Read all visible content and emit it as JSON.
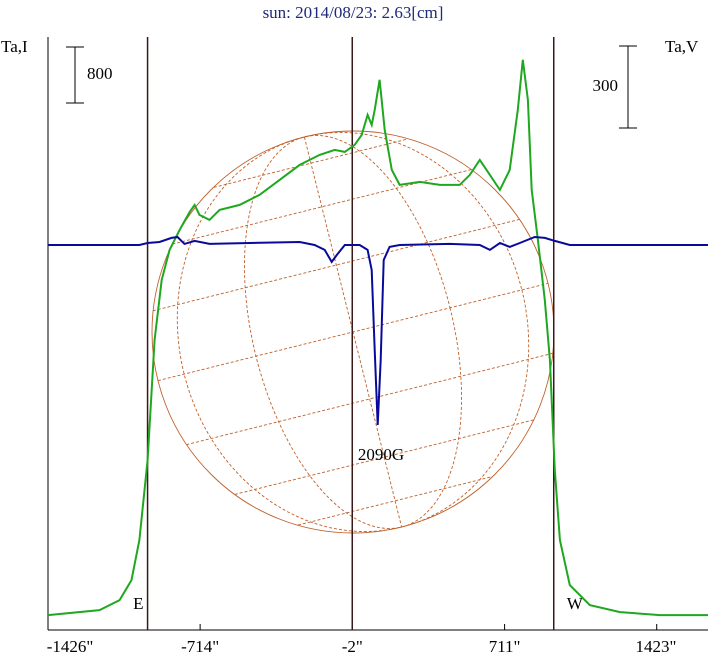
{
  "chart_data": {
    "type": "line",
    "title": "sun: 2014/08/23: 2.63[cm]",
    "xlim": [
      -1426,
      1663
    ],
    "ylim": [
      -170,
      8300
    ],
    "y2lim": [
      -1409,
      761
    ],
    "xticks": [
      {
        "value": -1426,
        "label": "-1426\""
      },
      {
        "value": -714,
        "label": "-714\""
      },
      {
        "value": -2,
        "label": "-2\""
      },
      {
        "value": 711,
        "label": "711\""
      },
      {
        "value": 1423,
        "label": "1423\""
      }
    ],
    "limb_lines": [
      -960,
      -2,
      941
    ],
    "limb_labels": [
      "E",
      "W"
    ],
    "scale_bars": [
      {
        "value": 800,
        "axis": "y"
      },
      {
        "value": 300,
        "axis": "y2"
      }
    ],
    "annotation": "2090G",
    "series": [
      {
        "name": "Ta,I",
        "color": "#1fa81f",
        "axis": "y",
        "x": [
          -1426,
          -1185,
          -1091,
          -1035,
          -998,
          -960,
          -927,
          -894,
          -857,
          -810,
          -763,
          -740,
          -717,
          -670,
          -623,
          -529,
          -436,
          -342,
          -248,
          -155,
          -84,
          -37,
          9,
          42,
          70,
          89,
          103,
          126,
          150,
          183,
          220,
          314,
          408,
          501,
          548,
          595,
          642,
          689,
          735,
          773,
          796,
          820,
          838,
          867,
          899,
          923,
          946,
          970,
          1016,
          1110,
          1251,
          1438,
          1663
        ],
        "values": [
          43,
          114,
          257,
          543,
          1115,
          2258,
          3973,
          4830,
          5259,
          5544,
          5802,
          5902,
          5759,
          5687,
          5830,
          5902,
          6045,
          6259,
          6473,
          6616,
          6688,
          6659,
          6759,
          6902,
          7188,
          7045,
          7259,
          7688,
          6974,
          6402,
          6188,
          6230,
          6188,
          6188,
          6330,
          6545,
          6330,
          6116,
          6402,
          7259,
          7974,
          7402,
          6116,
          5401,
          4544,
          3687,
          2115,
          1115,
          472,
          186,
          86,
          43,
          43
        ]
      },
      {
        "name": "Ta,V",
        "color": "#0a0a9a",
        "axis": "y2",
        "x": [
          -1426,
          -998,
          -960,
          -904,
          -848,
          -820,
          -787,
          -740,
          -670,
          -482,
          -248,
          -178,
          -131,
          -98,
          -75,
          -37,
          33,
          70,
          89,
          103,
          117,
          131,
          145,
          173,
          220,
          454,
          595,
          642,
          689,
          735,
          782,
          852,
          899,
          946,
          1016,
          1663
        ],
        "values": [
          0,
          0,
          7,
          11,
          26,
          29,
          4,
          15,
          4,
          7,
          11,
          0,
          -18,
          -62,
          -37,
          0,
          0,
          -18,
          -92,
          -384,
          -659,
          -421,
          -55,
          -7,
          0,
          4,
          0,
          -18,
          7,
          -7,
          7,
          29,
          26,
          15,
          0,
          0
        ]
      }
    ]
  }
}
